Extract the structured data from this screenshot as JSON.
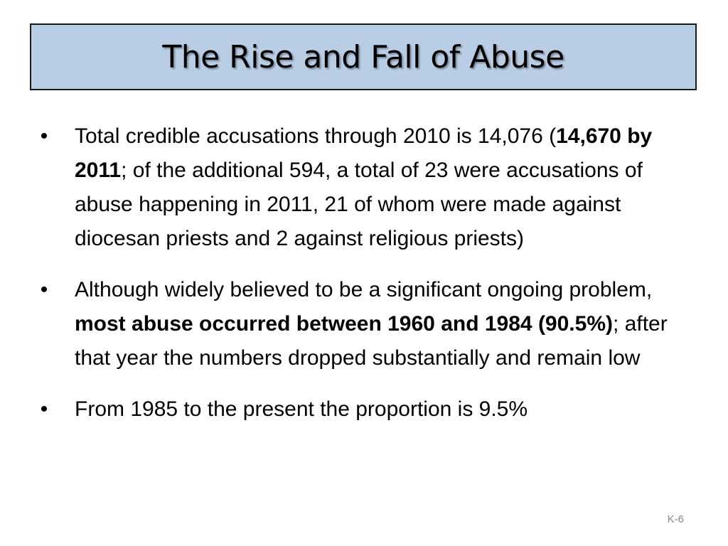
{
  "slide": {
    "title": "The Rise and Fall of Abuse",
    "bullet_symbol": "•",
    "bullets": [
      {
        "parts": [
          {
            "text": "Total credible accusations through 2010 is 14,076 (",
            "bold": false
          },
          {
            "text": "14,670 by 2011",
            "bold": true
          },
          {
            "text": "; of the additional 594, a total of 23 were accusations of abuse happening in 2011, 21 of whom were made against diocesan priests and 2 against religious priests)",
            "bold": false
          }
        ]
      },
      {
        "parts": [
          {
            "text": "Although widely believed to be a significant ongoing problem, ",
            "bold": false
          },
          {
            "text": "most abuse occurred between 1960 and 1984 (90.5%)",
            "bold": true
          },
          {
            "text": "; after that year the numbers dropped substantially and remain low",
            "bold": false
          }
        ]
      },
      {
        "parts": [
          {
            "text": "From 1985 to the present the proportion is 9.5%",
            "bold": false
          }
        ]
      }
    ],
    "slide_number": "K-6"
  },
  "colors": {
    "title_background": "#b9cde5",
    "title_border": "#1a1a1a",
    "slide_number": "#8a8a8a"
  }
}
